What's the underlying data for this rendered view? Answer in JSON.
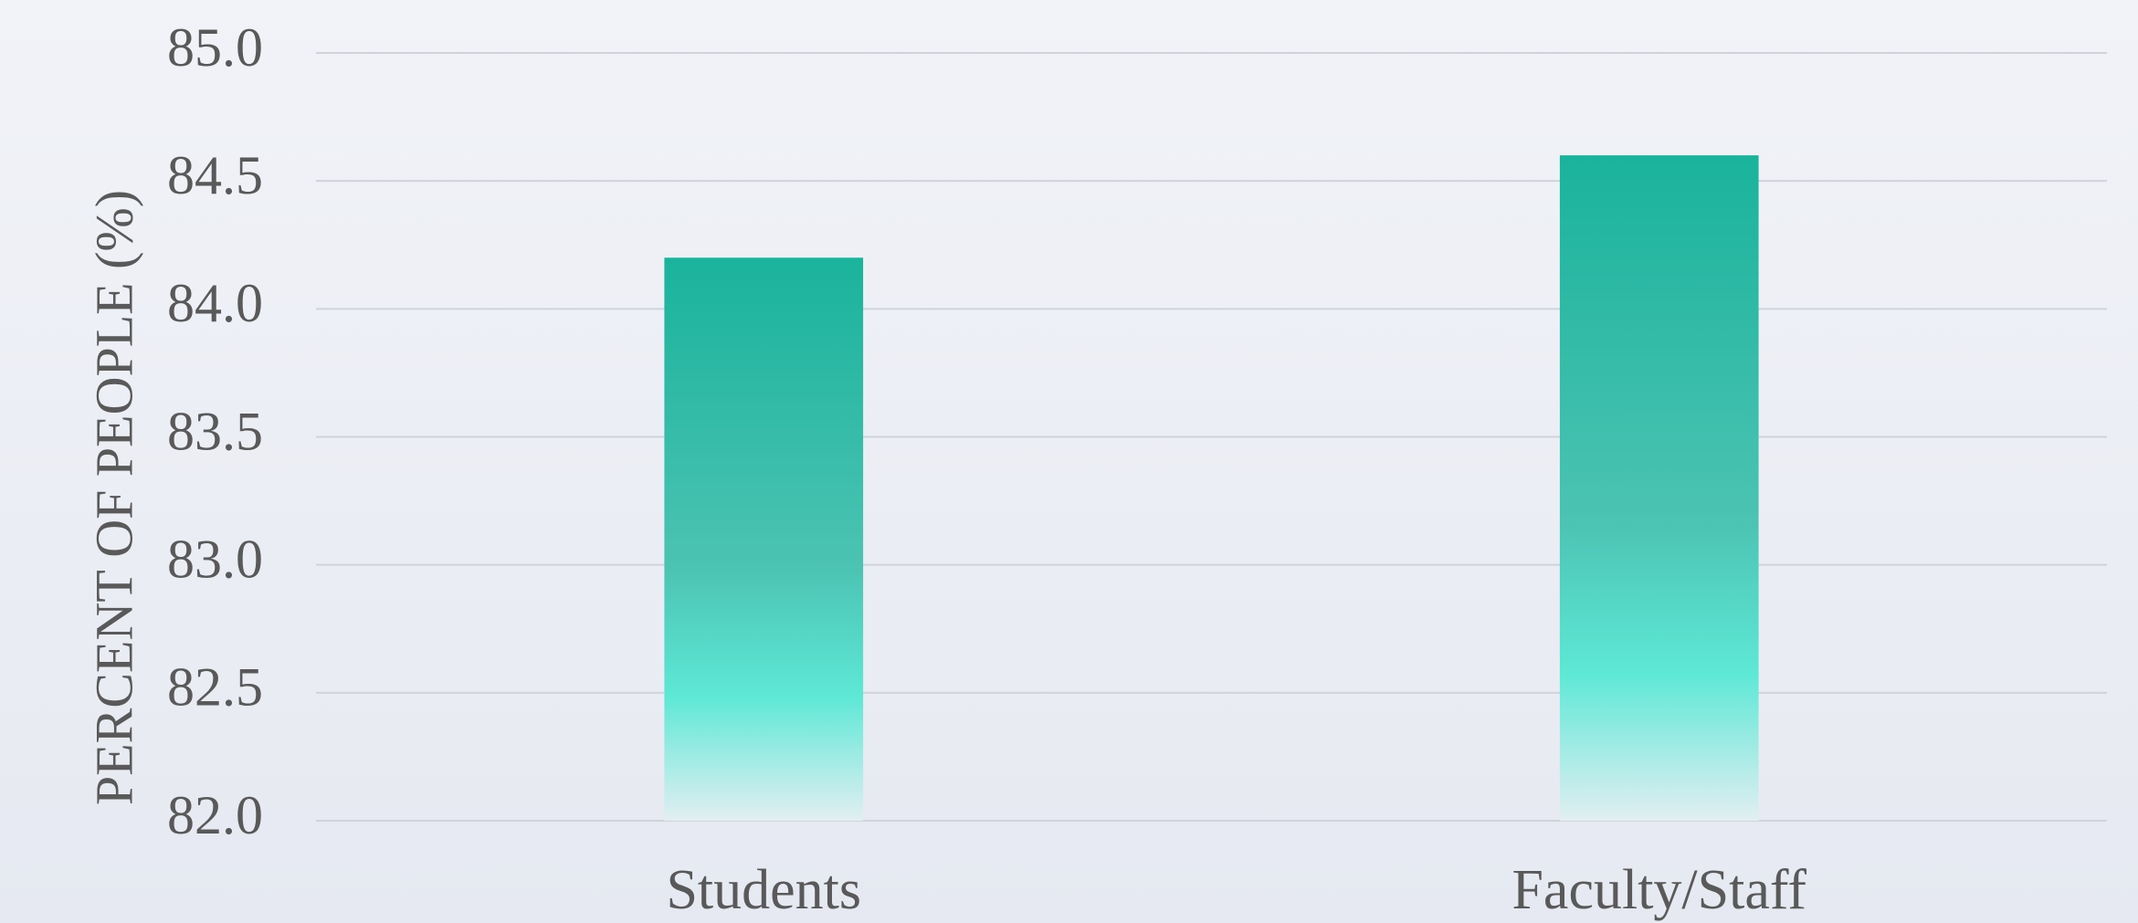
{
  "chart_data": {
    "type": "bar",
    "y_axis_label": "PERCENT OF PEOPLE (%)",
    "categories": [
      "Students",
      "Faculty/Staff"
    ],
    "values": [
      84.2,
      84.6
    ],
    "color": "#1ab39c",
    "ylim": [
      82.0,
      85.0
    ],
    "yticks": [
      {
        "value": 82.0,
        "label": "82.0"
      },
      {
        "value": 82.5,
        "label": "82.5"
      },
      {
        "value": 83.0,
        "label": "83.0"
      },
      {
        "value": 83.5,
        "label": "83.5"
      },
      {
        "value": 84.0,
        "label": "84.0"
      },
      {
        "value": 84.5,
        "label": "84.5"
      },
      {
        "value": 85.0,
        "label": "85.0"
      }
    ],
    "grid": true
  }
}
